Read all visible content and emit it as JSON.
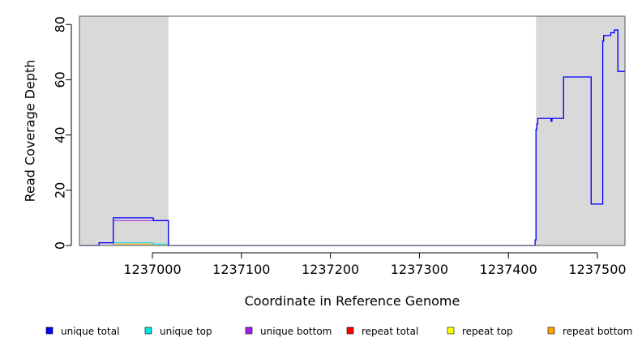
{
  "chart_data": {
    "type": "line",
    "xlabel": "Coordinate in Reference Genome",
    "ylabel": "Read Coverage Depth",
    "xlim": [
      1236918,
      1237531
    ],
    "ylim": [
      0,
      83
    ],
    "x_ticks": [
      1237000,
      1237100,
      1237200,
      1237300,
      1237400,
      1237500
    ],
    "y_ticks": [
      0,
      20,
      40,
      60,
      80
    ],
    "shaded_regions": [
      {
        "x": [
          1236918,
          1237018
        ],
        "color": "#d9d9d9"
      },
      {
        "x": [
          1237431,
          1237531
        ],
        "color": "#d9d9d9"
      }
    ],
    "series": [
      {
        "name": "unique total",
        "color": "#0000ff",
        "x": [
          1236918,
          1236940,
          1236940,
          1236956,
          1236956,
          1237001,
          1237001,
          1237018,
          1237018,
          1237430,
          1237430,
          1237431,
          1237431,
          1237432,
          1237432,
          1237433,
          1237433,
          1237448,
          1237448,
          1237449,
          1237449,
          1237462,
          1237462,
          1237493,
          1237493,
          1237506,
          1237506,
          1237507,
          1237507,
          1237515,
          1237515,
          1237519,
          1237519,
          1237523,
          1237523,
          1237531
        ],
        "values": [
          0,
          0,
          1,
          1,
          10,
          10,
          9,
          9,
          0,
          0,
          2,
          2,
          42,
          42,
          44,
          44,
          46,
          46,
          45,
          45,
          46,
          46,
          61,
          61,
          15,
          15,
          74,
          74,
          76,
          76,
          77,
          77,
          78,
          78,
          63,
          63
        ]
      },
      {
        "name": "unique top",
        "color": "#00e5e5",
        "x": [
          1236918,
          1236956,
          1236956,
          1237001,
          1237001,
          1237018,
          1237018,
          1237531
        ],
        "values": [
          0,
          0,
          1,
          1,
          0.5,
          0.5,
          0,
          0
        ]
      },
      {
        "name": "unique bottom",
        "color": "#a020f0",
        "x": [
          1236918,
          1236940,
          1236940,
          1236956,
          1236956,
          1237001,
          1237001,
          1237018,
          1237018,
          1237430,
          1237430,
          1237431,
          1237431,
          1237432,
          1237432,
          1237433,
          1237433,
          1237448,
          1237448,
          1237449,
          1237449,
          1237462,
          1237462,
          1237493,
          1237493,
          1237506,
          1237506,
          1237507,
          1237507,
          1237515,
          1237515,
          1237519,
          1237519,
          1237523,
          1237523,
          1237531
        ],
        "values": [
          0,
          0,
          1,
          1,
          9,
          9,
          9,
          9,
          0,
          0,
          2,
          2,
          42,
          42,
          44,
          44,
          46,
          46,
          45,
          45,
          46,
          46,
          61,
          61,
          15,
          15,
          74,
          74,
          76,
          76,
          77,
          77,
          78,
          78,
          63,
          63
        ]
      },
      {
        "name": "repeat total",
        "color": "#ff0000",
        "x": [
          1236918,
          1237531
        ],
        "values": [
          0,
          0
        ]
      },
      {
        "name": "repeat top",
        "color": "#ffff00",
        "x": [
          1236918,
          1237531
        ],
        "values": [
          0,
          0
        ]
      },
      {
        "name": "repeat bottom",
        "color": "#ffa500",
        "x": [
          1236918,
          1236956,
          1236956,
          1237001,
          1237001,
          1237531
        ],
        "values": [
          0,
          0,
          0.5,
          0.5,
          0,
          0
        ]
      }
    ],
    "legend_position": "bottom"
  }
}
